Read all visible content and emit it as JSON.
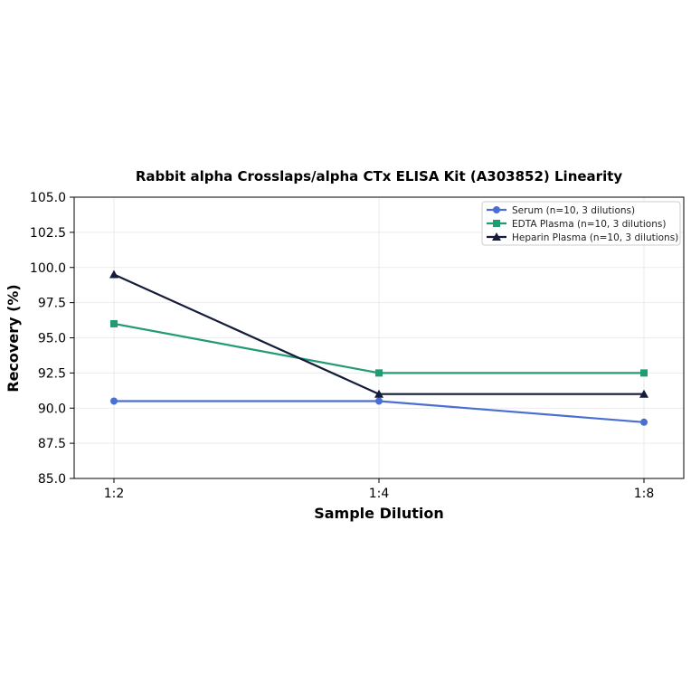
{
  "chart_data": {
    "type": "line",
    "title": "Rabbit alpha Crosslaps/alpha CTx ELISA Kit (A303852) Linearity",
    "xlabel": "Sample Dilution",
    "ylabel": "Recovery (%)",
    "categories": [
      "1:2",
      "1:4",
      "1:8"
    ],
    "ylim": [
      85.0,
      105.0
    ],
    "yticks": [
      "85.0",
      "87.5",
      "90.0",
      "92.5",
      "95.0",
      "97.5",
      "100.0",
      "102.5",
      "105.0"
    ],
    "grid": true,
    "legend_position": "top-right",
    "series": [
      {
        "name": "Serum (n=10, 3 dilutions)",
        "values": [
          90.5,
          90.5,
          89.0
        ],
        "color": "#4a6fd0",
        "marker": "circle"
      },
      {
        "name": "EDTA Plasma (n=10, 3 dilutions)",
        "values": [
          96.0,
          92.5,
          92.5
        ],
        "color": "#229a73",
        "marker": "square"
      },
      {
        "name": "Heparin Plasma (n=10, 3 dilutions)",
        "values": [
          99.5,
          91.0,
          91.0
        ],
        "color": "#141c3a",
        "marker": "triangle"
      }
    ]
  }
}
